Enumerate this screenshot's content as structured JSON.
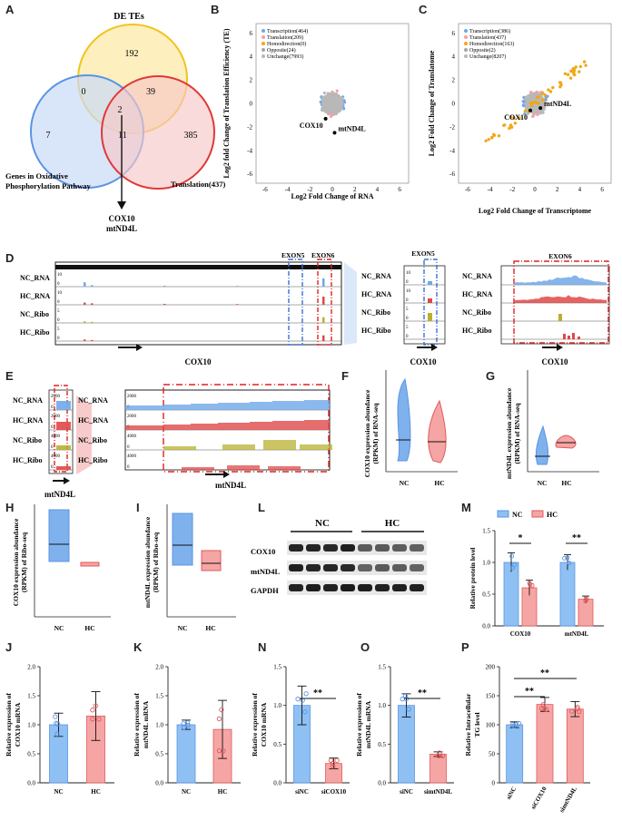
{
  "panels": [
    "A",
    "B",
    "C",
    "D",
    "E",
    "F",
    "G",
    "H",
    "I",
    "L",
    "M",
    "J",
    "K",
    "N",
    "O",
    "P"
  ],
  "venn": {
    "sets": [
      {
        "name": "DE TEs",
        "color": "#f7c948"
      },
      {
        "name": "Genes in Oxidative",
        "name2": "Phosphorylation Pathway",
        "color": "#6fa8e8"
      },
      {
        "name": "Translation(437)",
        "color": "#ec5a5a"
      }
    ],
    "counts": {
      "de_only": "192",
      "ox_only": "7",
      "tr_only": "385",
      "de_ox": "0",
      "de_tr": "39",
      "ox_tr": "11",
      "all": "2"
    },
    "result": [
      "COX10",
      "mtND4L"
    ]
  },
  "scatterB": {
    "legend": [
      "Transcription(464)",
      "Translation(209)",
      "Homodirection(0)",
      "Opposite(24)",
      "Unchange(7993)"
    ],
    "xlabel": "Log2 Fold Change of RNA",
    "ylabel": "Log2 fold Change of Translation Efficiency (TE)",
    "xticks": [
      "-6",
      "-4",
      "-2",
      "0",
      "2",
      "4",
      "6"
    ],
    "yticks": [
      "6",
      "4",
      "2",
      "0",
      "-2",
      "-4",
      "-6"
    ],
    "points": [
      {
        "name": "COX10",
        "x": -0.6,
        "y": -1.3
      },
      {
        "name": "mtND4L",
        "x": 0.2,
        "y": -2.5
      }
    ]
  },
  "scatterC": {
    "legend": [
      "Transcription(386)",
      "Translation(437)",
      "Homodirection(163)",
      "Opposite(2)",
      "Unchange(8207)"
    ],
    "xlabel": "Log2 Fold Change of Transcriptome",
    "ylabel": "Log2 Fold Change of Translatome",
    "xticks": [
      "-6",
      "-4",
      "-2",
      "0",
      "2",
      "4",
      "6"
    ],
    "yticks": [
      "6",
      "4",
      "2",
      "0",
      "-2",
      "-4",
      "-6"
    ],
    "points": [
      {
        "name": "COX10",
        "x": -0.4,
        "y": -0.6
      },
      {
        "name": "mtND4L",
        "x": 0.5,
        "y": -0.4
      }
    ]
  },
  "legendColors": [
    "#6fa8e8",
    "#f4a0a8",
    "#f0a818",
    "#a6a6a6",
    "#b8b8b8"
  ],
  "tracks": [
    "NC_RNA",
    "HC_RNA",
    "NC_Ribo",
    "HC_Ribo"
  ],
  "trackColors": [
    "#6fa8e8",
    "#e04848",
    "#b8b030",
    "#e04848"
  ],
  "trackD": {
    "scales": [
      "10",
      "10",
      "5",
      "5"
    ],
    "zeros": [
      "0",
      "0",
      "0",
      "0"
    ]
  },
  "trackDz": {
    "scales": [
      "10",
      "10",
      "5",
      "5"
    ],
    "zero": "0"
  },
  "trackE": {
    "scales": [
      "2000",
      "2000",
      "4000",
      "4000"
    ],
    "zero": "0"
  },
  "exons": [
    "EXON5",
    "EXON6"
  ],
  "genes": {
    "cox10": "COX10",
    "nd4l": "mtND4L"
  },
  "groups": [
    "NC",
    "HC"
  ],
  "siGroups": {
    "n": [
      "siNC",
      "siCOX10"
    ],
    "o": [
      "siNC",
      "simtND4L"
    ],
    "p": [
      "siNC",
      "siCOX10",
      "simtND4L"
    ]
  },
  "violinF": {
    "ylabel": "COX10 expression abundance",
    "ylabel2": "(RPKM) of RNA-seq"
  },
  "violinG": {
    "ylabel": "mtND4L expression abundance",
    "ylabel2": "(RPKM) of RNA-seq"
  },
  "boxH": {
    "ylabel": "COX10 expression abundance",
    "ylabel2": "(RPKM) of Ribo-seq"
  },
  "boxI": {
    "ylabel": "mtND4L expression abundance",
    "ylabel2": "(RPKM) of Ribo-seq"
  },
  "western": {
    "rows": [
      "COX10",
      "mtND4L",
      "GAPDH"
    ],
    "groups": [
      "NC",
      "HC"
    ]
  },
  "chartM": {
    "ylabel": "Relative protein level",
    "categories": [
      "COX10",
      "mtND4L"
    ],
    "legend": [
      "NC",
      "HC"
    ],
    "series": [
      {
        "name": "NC",
        "values": [
          1.0,
          1.0
        ]
      },
      {
        "name": "HC",
        "values": [
          0.6,
          0.42
        ]
      }
    ],
    "sig": [
      "*",
      "**"
    ],
    "yticks": [
      "0.0",
      "0.5",
      "1.0",
      "1.5"
    ]
  },
  "chart_data": [
    {
      "type": "bar",
      "panel": "J",
      "categories": [
        "NC",
        "HC"
      ],
      "values": [
        1.0,
        1.15
      ],
      "errors": [
        0.2,
        0.42
      ],
      "ylabel": "Relative expression of COX10 mRNA",
      "ylim": [
        0,
        2.0
      ],
      "yticks": [
        "0.0",
        "0.5",
        "1.0",
        "1.5",
        "2.0"
      ]
    },
    {
      "type": "bar",
      "panel": "K",
      "categories": [
        "NC",
        "HC"
      ],
      "values": [
        1.0,
        0.92
      ],
      "errors": [
        0.08,
        0.5
      ],
      "ylabel": "Relative expression of mtND4L mRNA",
      "ylim": [
        0,
        2.0
      ],
      "yticks": [
        "0.0",
        "0.5",
        "1.0",
        "1.5",
        "2.0"
      ]
    },
    {
      "type": "bar",
      "panel": "N",
      "categories": [
        "siNC",
        "siCOX10"
      ],
      "values": [
        1.0,
        0.25
      ],
      "errors": [
        0.25,
        0.07
      ],
      "ylabel": "Relative expression of COX10 mRNA",
      "ylim": [
        0,
        1.5
      ],
      "yticks": [
        "0.0",
        "0.5",
        "1.0",
        "1.5"
      ],
      "sig": "**"
    },
    {
      "type": "bar",
      "panel": "O",
      "categories": [
        "siNC",
        "simtND4L"
      ],
      "values": [
        1.0,
        0.37
      ],
      "errors": [
        0.15,
        0.03
      ],
      "ylabel": "Relative expression of mtND4L mRNA",
      "ylim": [
        0,
        1.5
      ],
      "yticks": [
        "0.0",
        "0.5",
        "1.0",
        "1.5"
      ],
      "sig": "**"
    },
    {
      "type": "bar",
      "panel": "P",
      "categories": [
        "siNC",
        "siCOX10",
        "simtND4L"
      ],
      "values": [
        100,
        135,
        127
      ],
      "errors": [
        5,
        12,
        13
      ],
      "ylabel": "Relative Intracellular TG level",
      "ylim": [
        0,
        200
      ],
      "yticks": [
        "0",
        "50",
        "100",
        "150",
        "200"
      ],
      "sig": [
        "**",
        "**"
      ]
    }
  ],
  "axisYLabelsSplit": {
    "J": [
      "Relative expression of",
      "COX10 mRNA"
    ],
    "K": [
      "Relative expression of",
      "mtND4L mRNA"
    ],
    "N": [
      "Relative expression of",
      "COX10 mRNA"
    ],
    "O": [
      "Relative expression of",
      "mtND4L mRNA"
    ],
    "P": [
      "Relative Intracellular",
      "TG level"
    ]
  }
}
